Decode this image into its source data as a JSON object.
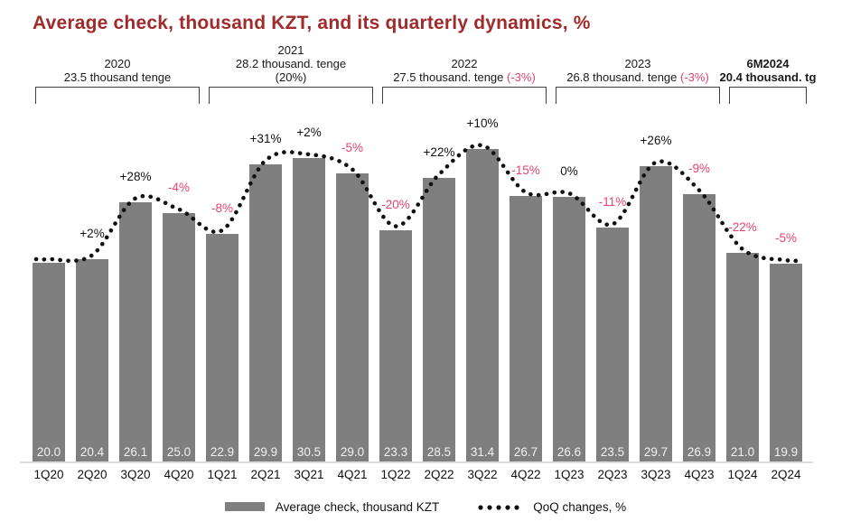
{
  "title": "Average check, thousand KZT, and its quarterly dynamics, %",
  "legend": {
    "bar_label": "Average check, thousand KZT",
    "line_label": "QoQ changes, %"
  },
  "colors": {
    "title": "#a12b2b",
    "bar": "#7f7f7f",
    "bar_value_text": "#f1f1f1",
    "negative_pct": "#e8436e",
    "positive_pct": "#111111",
    "dotted_line": "#111111",
    "bracket": "#404040",
    "baseline": "#dcdcdc"
  },
  "chart_data": {
    "type": "bar",
    "title": "Average check, thousand KZT, and its quarterly dynamics, %",
    "xlabel": "",
    "ylabel": "",
    "ylim": [
      0,
      33
    ],
    "grid": false,
    "legend_position": "bottom",
    "categories": [
      "1Q20",
      "2Q20",
      "3Q20",
      "4Q20",
      "1Q21",
      "2Q21",
      "3Q21",
      "4Q21",
      "1Q22",
      "2Q22",
      "3Q22",
      "4Q22",
      "1Q23",
      "2Q23",
      "3Q23",
      "4Q23",
      "1Q24",
      "2Q24"
    ],
    "series": [
      {
        "name": "Average check, thousand KZT",
        "type": "bar",
        "values": [
          20.0,
          20.4,
          26.1,
          25.0,
          22.9,
          29.9,
          30.5,
          29.0,
          23.3,
          28.5,
          31.4,
          26.7,
          26.6,
          23.5,
          29.7,
          26.9,
          21.0,
          19.9
        ]
      },
      {
        "name": "QoQ changes, %",
        "type": "dotted-line",
        "point_labels": [
          "",
          "+2%",
          "+28%",
          "-4%",
          "-8%",
          "+31%",
          "+2%",
          "-5%",
          "-20%",
          "+22%",
          "+10%",
          "-15%",
          "0%",
          "-11%",
          "+26%",
          "-9%",
          "-22%",
          "-5%"
        ]
      }
    ],
    "year_groups": [
      {
        "year": "2020",
        "value_line": "23.5 thousand tenge",
        "red_suffix": "",
        "extra_line": "",
        "bold": false,
        "from": 0,
        "to": 3
      },
      {
        "year": "2021",
        "value_line": "28.2 thousand. tenge",
        "red_suffix": "",
        "extra_line": "(20%)",
        "bold": false,
        "from": 4,
        "to": 7
      },
      {
        "year": "2022",
        "value_line": "27.5 thousand. tenge",
        "red_suffix": "(-3%)",
        "extra_line": "",
        "bold": false,
        "from": 8,
        "to": 11
      },
      {
        "year": "2023",
        "value_line": "26.8 thousand. tenge",
        "red_suffix": "(-3%)",
        "extra_line": "",
        "bold": false,
        "from": 12,
        "to": 15
      },
      {
        "year": "6M2024",
        "value_line": "20.4 thousand. tg",
        "red_suffix": "",
        "extra_line": "",
        "bold": true,
        "from": 16,
        "to": 17
      }
    ]
  }
}
